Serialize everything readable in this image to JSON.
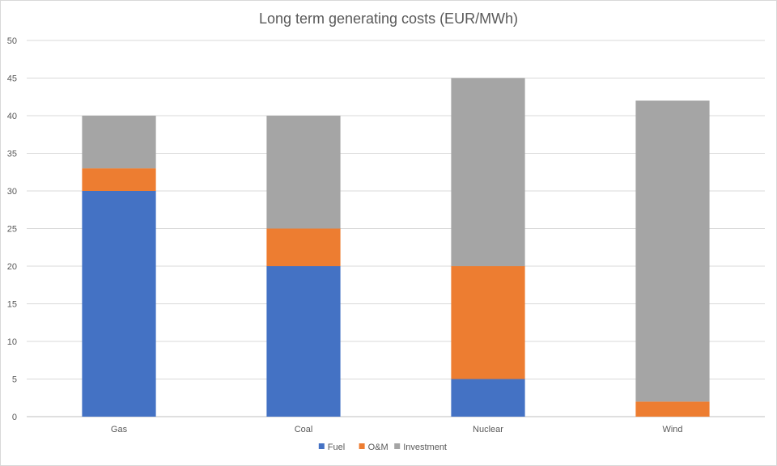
{
  "chart_data": {
    "type": "bar",
    "stacked": true,
    "title": "Long term generating costs (EUR/MWh)",
    "xlabel": "",
    "ylabel": "",
    "categories": [
      "Gas",
      "Coal",
      "Nuclear",
      "Wind"
    ],
    "series": [
      {
        "name": "Fuel",
        "color": "#4472c4",
        "values": [
          30,
          20,
          5,
          0
        ]
      },
      {
        "name": "O&M",
        "color": "#ed7d31",
        "values": [
          3,
          5,
          15,
          2
        ]
      },
      {
        "name": "Investment",
        "color": "#a5a5a5",
        "values": [
          7,
          15,
          25,
          40
        ]
      }
    ],
    "ylim": [
      0,
      50
    ],
    "yticks": [
      "0",
      "5",
      "10",
      "15",
      "20",
      "25",
      "30",
      "35",
      "40",
      "45",
      "50"
    ],
    "grid": true,
    "legend_position": "bottom"
  }
}
